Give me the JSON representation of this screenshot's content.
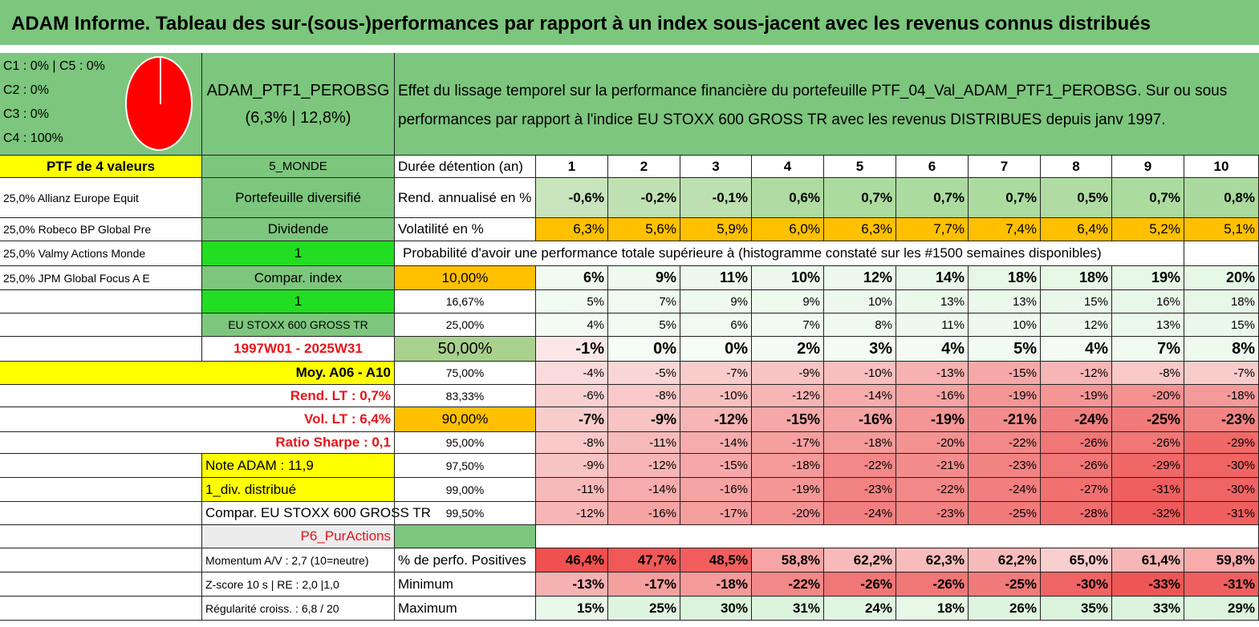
{
  "title": "ADAM Informe. Tableau des sur-(sous-)performances par rapport à un index sous-jacent avec les revenus connus distribués",
  "legend": {
    "line1": "C1 : 0% | C5 : 0%",
    "line2": "C2 : 0%",
    "line3": "C3 : 0%",
    "line4": "C4 : 100%",
    "pie_color": "#ff0000"
  },
  "portfolio": {
    "name": "ADAM_PTF1_PEROBSG",
    "stats": "(6,3% | 12,8%)"
  },
  "description": {
    "line1": "Effet du lissage temporel sur la performance financière du portefeuille PTF_04_Val_ADAM_PTF1_PEROBSG. Sur ou sous",
    "line2": "performances par rapport à l'indice EU STOXX 600 GROSS TR avec les revenus DISTRIBUES depuis janv 1997."
  },
  "left_col": {
    "header": "PTF de 4 valeurs",
    "holdings": [
      "25,0% Allianz Europe Equit",
      "25,0% Robeco BP Global Pre",
      "25,0% Valmy Actions Monde",
      "25,0% JPM Global Focus A E"
    ],
    "moy": "Moy. A06 - A10",
    "rend_lt": "Rend. LT : 0,7%",
    "vol_lt": "Vol. LT : 6,4%",
    "sharpe": "Ratio Sharpe : 0,1",
    "note": "Note ADAM : 11,9",
    "div": "1_div. distribué",
    "compar": "Compar. EU STOXX 600 GROSS TR",
    "momentum": "Momentum A/V : 2,7 (10=neutre)",
    "zscore": "Z-score 10 s | RE : 2,0 |1,0",
    "regularite": "Régularité croiss. : 6,8 / 20"
  },
  "mid_col": {
    "monde": "5_MONDE",
    "diversifie": "Portefeuille diversifié",
    "dividende": "Dividende",
    "one_a": "1",
    "compar_index": "Compar. index",
    "one_b": "1",
    "index_name": "EU STOXX 600 GROSS TR",
    "period": "1997W01 - 2025W31",
    "pur_actions": "P6_PurActions"
  },
  "table": {
    "duree_label": "Durée détention (an)",
    "years": [
      "1",
      "2",
      "3",
      "4",
      "5",
      "6",
      "7",
      "8",
      "9",
      "10"
    ],
    "rend_label": "Rend. annualisé en %",
    "rend": [
      "-0,6%",
      "-0,2%",
      "-0,1%",
      "0,6%",
      "0,7%",
      "0,7%",
      "0,7%",
      "0,5%",
      "0,7%",
      "0,8%"
    ],
    "vol_label": "Volatilité en %",
    "vol": [
      "6,3%",
      "5,6%",
      "5,9%",
      "6,0%",
      "6,3%",
      "7,7%",
      "7,4%",
      "6,4%",
      "5,2%",
      "5,1%"
    ],
    "prob_label": "Probabilité d'avoir une performance totale supérieure à (histogramme constaté sur les #1500 semaines disponibles)",
    "quantiles": [
      {
        "label": "10,00%",
        "values": [
          "6%",
          "9%",
          "11%",
          "10%",
          "12%",
          "14%",
          "18%",
          "18%",
          "19%",
          "20%"
        ]
      },
      {
        "label": "16,67%",
        "values": [
          "5%",
          "7%",
          "9%",
          "9%",
          "10%",
          "13%",
          "13%",
          "15%",
          "16%",
          "18%"
        ]
      },
      {
        "label": "25,00%",
        "values": [
          "4%",
          "5%",
          "6%",
          "7%",
          "8%",
          "11%",
          "10%",
          "12%",
          "13%",
          "15%"
        ]
      },
      {
        "label": "50,00%",
        "values": [
          "-1%",
          "0%",
          "0%",
          "2%",
          "3%",
          "4%",
          "5%",
          "4%",
          "7%",
          "8%"
        ]
      },
      {
        "label": "75,00%",
        "values": [
          "-4%",
          "-5%",
          "-7%",
          "-9%",
          "-10%",
          "-13%",
          "-15%",
          "-12%",
          "-8%",
          "-7%"
        ]
      },
      {
        "label": "83,33%",
        "values": [
          "-6%",
          "-8%",
          "-10%",
          "-12%",
          "-14%",
          "-16%",
          "-19%",
          "-19%",
          "-20%",
          "-18%"
        ]
      },
      {
        "label": "90,00%",
        "values": [
          "-7%",
          "-9%",
          "-12%",
          "-15%",
          "-16%",
          "-19%",
          "-21%",
          "-24%",
          "-25%",
          "-23%"
        ]
      },
      {
        "label": "95,00%",
        "values": [
          "-8%",
          "-11%",
          "-14%",
          "-17%",
          "-18%",
          "-20%",
          "-22%",
          "-26%",
          "-26%",
          "-29%"
        ]
      },
      {
        "label": "97,50%",
        "values": [
          "-9%",
          "-12%",
          "-15%",
          "-18%",
          "-22%",
          "-21%",
          "-23%",
          "-26%",
          "-29%",
          "-30%"
        ]
      },
      {
        "label": "99,00%",
        "values": [
          "-11%",
          "-14%",
          "-16%",
          "-19%",
          "-23%",
          "-22%",
          "-24%",
          "-27%",
          "-31%",
          "-30%"
        ]
      },
      {
        "label": "99,50%",
        "values": [
          "-12%",
          "-16%",
          "-17%",
          "-20%",
          "-24%",
          "-23%",
          "-25%",
          "-28%",
          "-32%",
          "-31%"
        ]
      }
    ],
    "pos_label": "% de perfo. Positives",
    "pos": [
      "46,4%",
      "47,7%",
      "48,5%",
      "58,8%",
      "62,2%",
      "62,3%",
      "62,2%",
      "65,0%",
      "61,4%",
      "59,8%"
    ],
    "min_label": "Minimum",
    "min": [
      "-13%",
      "-17%",
      "-18%",
      "-22%",
      "-26%",
      "-26%",
      "-25%",
      "-30%",
      "-33%",
      "-31%"
    ],
    "max_label": "Maximum",
    "max": [
      "15%",
      "25%",
      "30%",
      "31%",
      "24%",
      "18%",
      "26%",
      "35%",
      "33%",
      "29%"
    ]
  },
  "colors": {
    "header_green": "#7dc67d",
    "bright_green": "#22dd22",
    "highlight_yellow": "#ffff00",
    "volatility_orange": "#ffc000",
    "negative_red": "#f87272",
    "positive_green": "#e9f7ea"
  }
}
